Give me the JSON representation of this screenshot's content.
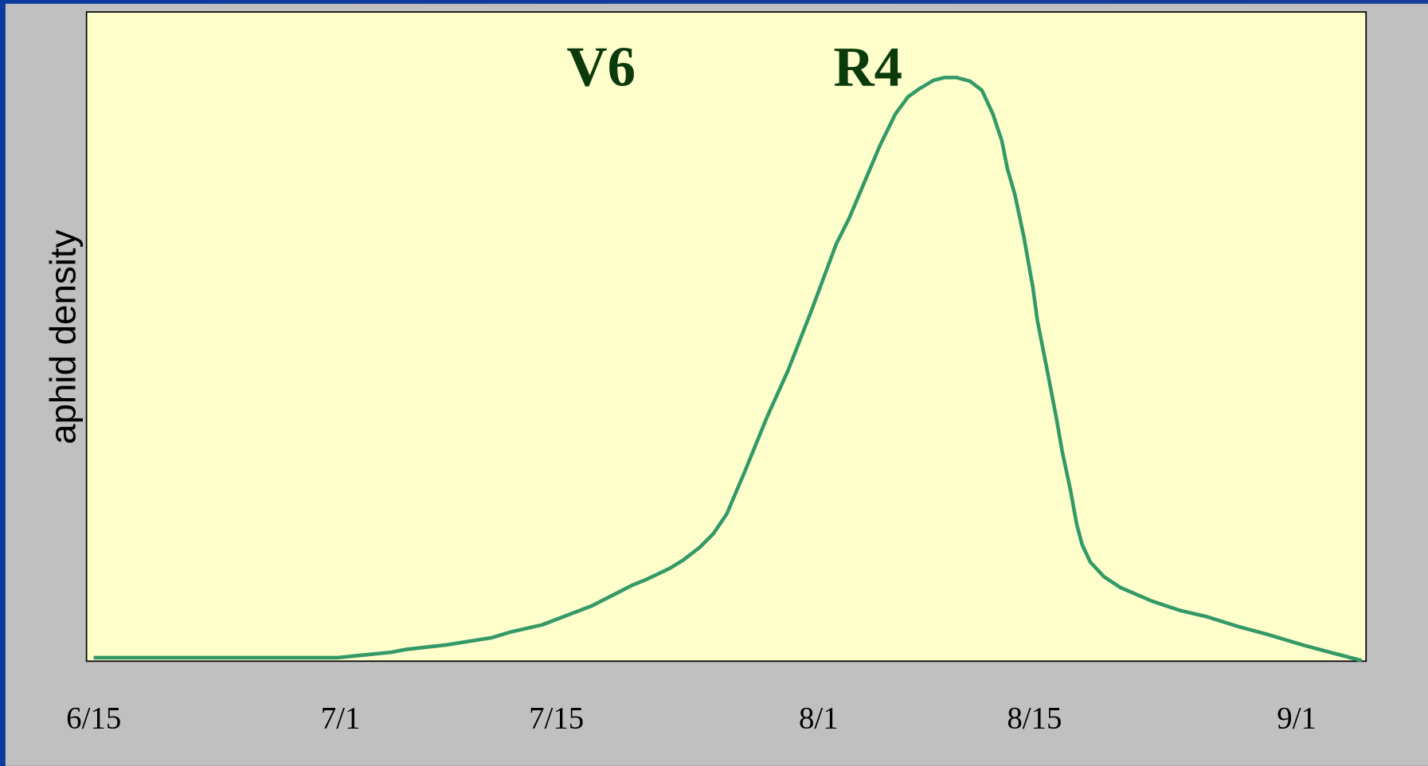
{
  "chart_data": {
    "type": "line",
    "ylabel": "aphid density",
    "annotations": [
      "V6",
      "R4"
    ],
    "xlim": [
      -0.47,
      82.5
    ],
    "ylim": [
      -0.6,
      111.3
    ],
    "xticks": [
      {
        "value": 0,
        "label": "6/15"
      },
      {
        "value": 16,
        "label": "7/1"
      },
      {
        "value": 30,
        "label": "7/15"
      },
      {
        "value": 47,
        "label": "8/1"
      },
      {
        "value": 61,
        "label": "8/15"
      },
      {
        "value": 78,
        "label": "9/1"
      }
    ],
    "series": [
      {
        "color": "#339966",
        "x": [
          0,
          15.77,
          16.95,
          19.31,
          20.2,
          22.86,
          25.81,
          26.99,
          29.06,
          32.31,
          34.97,
          35.85,
          37.33,
          38.21,
          39.28,
          40.17,
          41.05,
          42.23,
          43.65,
          45.01,
          46.49,
          48.14,
          48.97,
          50.97,
          51.98,
          52.81,
          53.57,
          54.46,
          55.17,
          55.94,
          56.82,
          57.59,
          58.3,
          58.89,
          59.24,
          59.72,
          60.31,
          60.9,
          61.19,
          61.84,
          62.43,
          62.79,
          63.32,
          63.73,
          64.09,
          64.62,
          65.5,
          66.57,
          68.64,
          70.41,
          72.18,
          74.25,
          76.02,
          78.38,
          80.15,
          82.22
        ],
        "values": [
          0,
          0,
          0.31,
          0.94,
          1.41,
          2.2,
          3.45,
          4.4,
          5.65,
          8.95,
          12.56,
          13.5,
          15.38,
          16.8,
          18.99,
          21.35,
          24.8,
          32.18,
          41.44,
          49.45,
          59.5,
          71.28,
          75.67,
          88.23,
          93.72,
          96.7,
          98.12,
          99.53,
          100,
          100,
          99.37,
          97.8,
          93.72,
          89.01,
          84.3,
          79.91,
          72.53,
          63.74,
          58.08,
          49.29,
          41.13,
          35.64,
          29.04,
          23.08,
          19.47,
          16.48,
          13.97,
          12.09,
          9.73,
          8.16,
          7.06,
          5.34,
          4.08,
          2.2,
          0.94,
          -0.5
        ]
      }
    ]
  }
}
